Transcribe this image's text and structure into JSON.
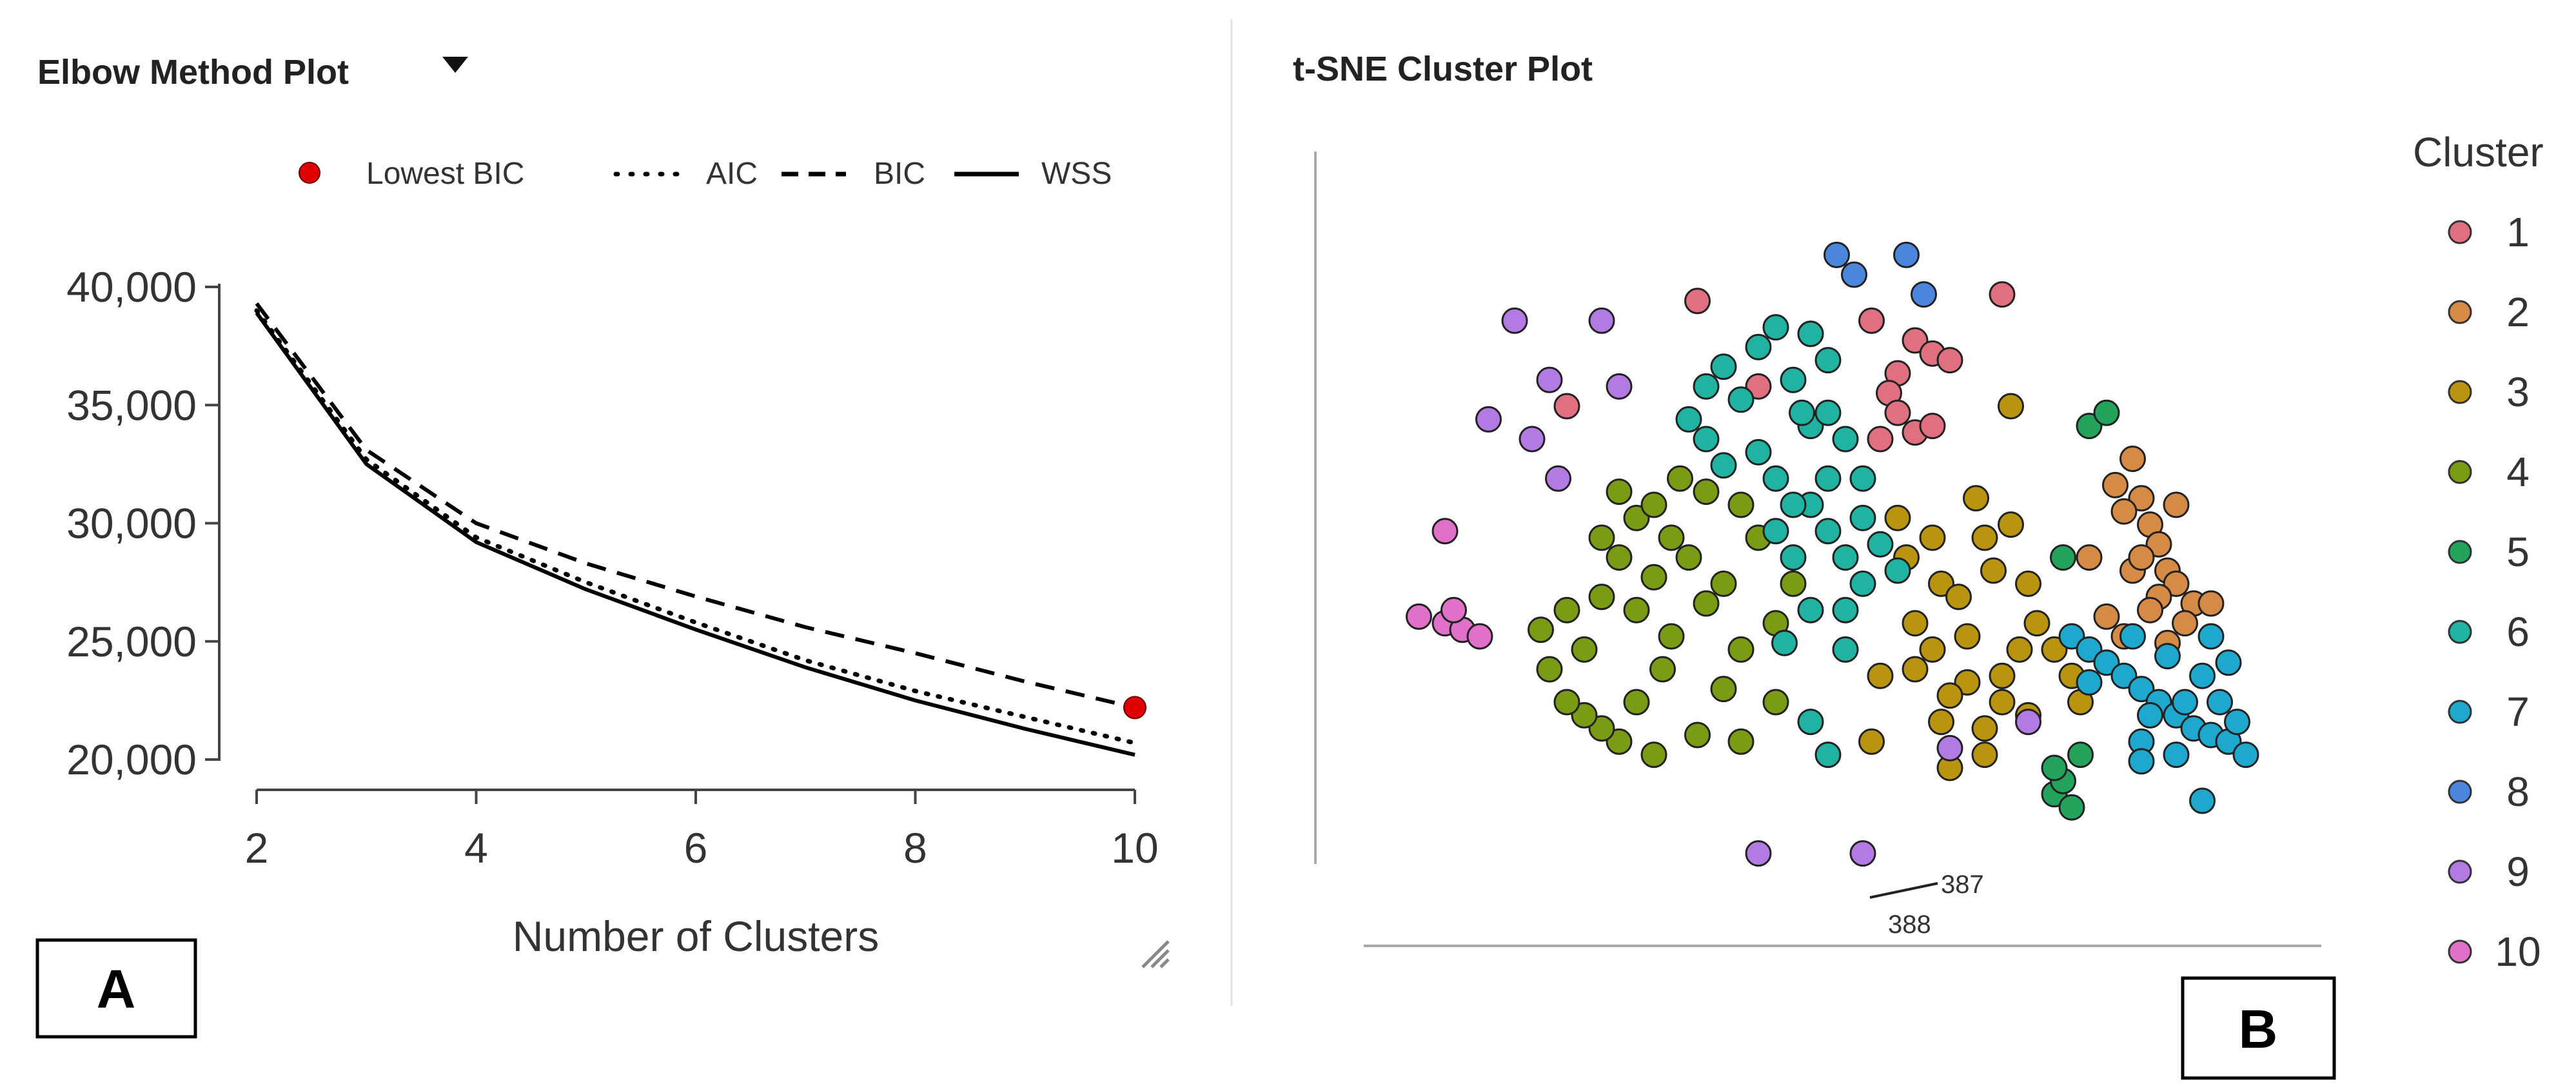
{
  "panels": {
    "left": {
      "title": "Elbow Method Plot",
      "dropdown_icon": "caret-down-icon",
      "box_label": "A",
      "resize_icon": "resize-grip-icon"
    },
    "right": {
      "title": "t-SNE Cluster Plot",
      "box_label": "B"
    }
  },
  "chart_data": [
    {
      "type": "line",
      "title": "Elbow Method Plot",
      "xlabel": "Number of Clusters",
      "ylabel": "",
      "x": [
        2,
        3,
        4,
        5,
        6,
        7,
        8,
        9,
        10
      ],
      "xlim": [
        2,
        10
      ],
      "ylim": [
        20000,
        40000
      ],
      "xticks": [
        "2",
        "4",
        "6",
        "8",
        "10"
      ],
      "yticks": [
        "20,000",
        "25,000",
        "30,000",
        "35,000",
        "40,000"
      ],
      "grid": false,
      "legend_position": "top",
      "legend": [
        "Lowest BIC",
        "AIC",
        "BIC",
        "WSS"
      ],
      "series": [
        {
          "name": "AIC",
          "style": "dotted",
          "color": "#000000",
          "values": [
            39000,
            32700,
            29400,
            27500,
            25800,
            24200,
            22900,
            21800,
            20700
          ]
        },
        {
          "name": "BIC",
          "style": "dashed",
          "color": "#000000",
          "values": [
            39300,
            33100,
            30000,
            28300,
            26900,
            25600,
            24500,
            23300,
            22200
          ]
        },
        {
          "name": "WSS",
          "style": "solid",
          "color": "#000000",
          "values": [
            38900,
            32500,
            29200,
            27200,
            25500,
            23900,
            22500,
            21300,
            20200
          ]
        }
      ],
      "highlight": {
        "label": "Lowest BIC",
        "x": 10,
        "y": 22200,
        "color": "#e00000"
      }
    },
    {
      "type": "scatter",
      "title": "t-SNE Cluster Plot",
      "xlabel": "",
      "ylabel": "",
      "xlim": [
        0,
        100
      ],
      "ylim": [
        0,
        100
      ],
      "grid": false,
      "legend_title": "Cluster",
      "legend_position": "right",
      "clusters": [
        {
          "name": "1",
          "color": "#e0707f",
          "points": [
            [
              20,
              75
            ],
            [
              35,
              91
            ],
            [
              42,
              78
            ],
            [
              48,
              86
            ],
            [
              55,
              88
            ],
            [
              58,
              80
            ],
            [
              60,
              85
            ],
            [
              62,
              83
            ],
            [
              57,
              77
            ],
            [
              64,
              82
            ],
            [
              60,
              71
            ],
            [
              58,
              74
            ],
            [
              56,
              70
            ],
            [
              62,
              72
            ],
            [
              70,
              92
            ]
          ]
        },
        {
          "name": "2",
          "color": "#d58a45",
          "points": [
            [
              83,
              63
            ],
            [
              85,
              67
            ],
            [
              86,
              61
            ],
            [
              87,
              57
            ],
            [
              88,
              54
            ],
            [
              89,
              50
            ],
            [
              90,
              48
            ],
            [
              88,
              46
            ],
            [
              87,
              44
            ],
            [
              85,
              50
            ],
            [
              84,
              59
            ],
            [
              90,
              60
            ],
            [
              92,
              45
            ],
            [
              91,
              42
            ],
            [
              94,
              45
            ],
            [
              82,
              43
            ],
            [
              84,
              40
            ],
            [
              89,
              39
            ],
            [
              80,
              52
            ],
            [
              86,
              52
            ]
          ]
        },
        {
          "name": "3",
          "color": "#b8940f",
          "points": [
            [
              58,
              58
            ],
            [
              59,
              52
            ],
            [
              62,
              55
            ],
            [
              63,
              48
            ],
            [
              65,
              46
            ],
            [
              66,
              40
            ],
            [
              62,
              38
            ],
            [
              60,
              35
            ],
            [
              66,
              33
            ],
            [
              70,
              30
            ],
            [
              72,
              38
            ],
            [
              74,
              42
            ],
            [
              76,
              38
            ],
            [
              78,
              34
            ],
            [
              79,
              30
            ],
            [
              73,
              28
            ],
            [
              68,
              26
            ],
            [
              64,
              31
            ],
            [
              70,
              34
            ],
            [
              73,
              48
            ],
            [
              69,
              50
            ],
            [
              71,
              57
            ],
            [
              68,
              55
            ],
            [
              71,
              75
            ],
            [
              67,
              61
            ],
            [
              63,
              27
            ],
            [
              60,
              42
            ],
            [
              55,
              24
            ],
            [
              56,
              34
            ],
            [
              64,
              20
            ],
            [
              68,
              22
            ]
          ]
        },
        {
          "name": "4",
          "color": "#7a9c14",
          "points": [
            [
              18,
              35
            ],
            [
              22,
              38
            ],
            [
              20,
              44
            ],
            [
              24,
              46
            ],
            [
              26,
              52
            ],
            [
              24,
              55
            ],
            [
              28,
              58
            ],
            [
              30,
              60
            ],
            [
              32,
              55
            ],
            [
              30,
              49
            ],
            [
              28,
              44
            ],
            [
              32,
              40
            ],
            [
              36,
              45
            ],
            [
              38,
              48
            ],
            [
              34,
              52
            ],
            [
              31,
              35
            ],
            [
              28,
              30
            ],
            [
              26,
              24
            ],
            [
              30,
              22
            ],
            [
              35,
              25
            ],
            [
              38,
              32
            ],
            [
              40,
              38
            ],
            [
              44,
              42
            ],
            [
              46,
              48
            ],
            [
              42,
              55
            ],
            [
              40,
              60
            ],
            [
              36,
              62
            ],
            [
              44,
              30
            ],
            [
              40,
              24
            ],
            [
              24,
              26
            ],
            [
              22,
              28
            ],
            [
              20,
              30
            ],
            [
              17,
              41
            ],
            [
              33,
              64
            ],
            [
              26,
              62
            ]
          ]
        },
        {
          "name": "5",
          "color": "#23a35c",
          "points": [
            [
              80,
              72
            ],
            [
              82,
              74
            ],
            [
              77,
              52
            ],
            [
              76,
              16
            ],
            [
              78,
              14
            ],
            [
              77,
              18
            ],
            [
              76,
              20
            ],
            [
              79,
              22
            ]
          ]
        },
        {
          "name": "6",
          "color": "#20b3a2",
          "points": [
            [
              34,
              73
            ],
            [
              36,
              78
            ],
            [
              38,
              81
            ],
            [
              42,
              84
            ],
            [
              44,
              87
            ],
            [
              48,
              86
            ],
            [
              50,
              82
            ],
            [
              46,
              79
            ],
            [
              40,
              76
            ],
            [
              36,
              70
            ],
            [
              38,
              66
            ],
            [
              42,
              68
            ],
            [
              44,
              64
            ],
            [
              48,
              60
            ],
            [
              50,
              56
            ],
            [
              52,
              52
            ],
            [
              54,
              48
            ],
            [
              52,
              44
            ],
            [
              48,
              44
            ],
            [
              46,
              52
            ],
            [
              44,
              56
            ],
            [
              46,
              60
            ],
            [
              50,
              64
            ],
            [
              54,
              58
            ],
            [
              56,
              54
            ],
            [
              58,
              50
            ],
            [
              48,
              72
            ],
            [
              50,
              74
            ],
            [
              52,
              38
            ],
            [
              45,
              39
            ],
            [
              50,
              22
            ],
            [
              48,
              27
            ],
            [
              54,
              64
            ],
            [
              47,
              74
            ],
            [
              52,
              70
            ]
          ]
        },
        {
          "name": "7",
          "color": "#1fa8ce",
          "points": [
            [
              78,
              40
            ],
            [
              80,
              38
            ],
            [
              82,
              36
            ],
            [
              84,
              34
            ],
            [
              86,
              32
            ],
            [
              88,
              30
            ],
            [
              90,
              28
            ],
            [
              92,
              26
            ],
            [
              94,
              25
            ],
            [
              96,
              24
            ],
            [
              98,
              22
            ],
            [
              87,
              28
            ],
            [
              91,
              30
            ],
            [
              95,
              30
            ],
            [
              97,
              27
            ],
            [
              85,
              40
            ],
            [
              89,
              37
            ],
            [
              93,
              34
            ],
            [
              96,
              36
            ],
            [
              86,
              24
            ],
            [
              90,
              22
            ],
            [
              93,
              15
            ],
            [
              80,
              33
            ],
            [
              86,
              21
            ],
            [
              94,
              40
            ]
          ]
        },
        {
          "name": "8",
          "color": "#4a86de",
          "points": [
            [
              51,
              98
            ],
            [
              53,
              95
            ],
            [
              59,
              98
            ],
            [
              61,
              92
            ]
          ]
        },
        {
          "name": "9",
          "color": "#b47ae3",
          "points": [
            [
              14,
              88
            ],
            [
              18,
              79
            ],
            [
              24,
              88
            ],
            [
              42,
              7
            ],
            [
              54,
              7
            ],
            [
              64,
              23
            ],
            [
              73,
              27
            ],
            [
              16,
              70
            ],
            [
              11,
              73
            ],
            [
              26,
              78
            ],
            [
              19,
              64
            ]
          ]
        },
        {
          "name": "10",
          "color": "#e070c8",
          "points": [
            [
              3,
              43
            ],
            [
              6,
              42
            ],
            [
              8,
              41
            ],
            [
              10,
              40
            ],
            [
              6,
              56
            ],
            [
              7,
              44
            ]
          ]
        }
      ],
      "annotations": [
        {
          "label": "387",
          "x": 54,
          "y": 7
        },
        {
          "label": "388",
          "x": 54,
          "y": 7
        }
      ]
    }
  ]
}
